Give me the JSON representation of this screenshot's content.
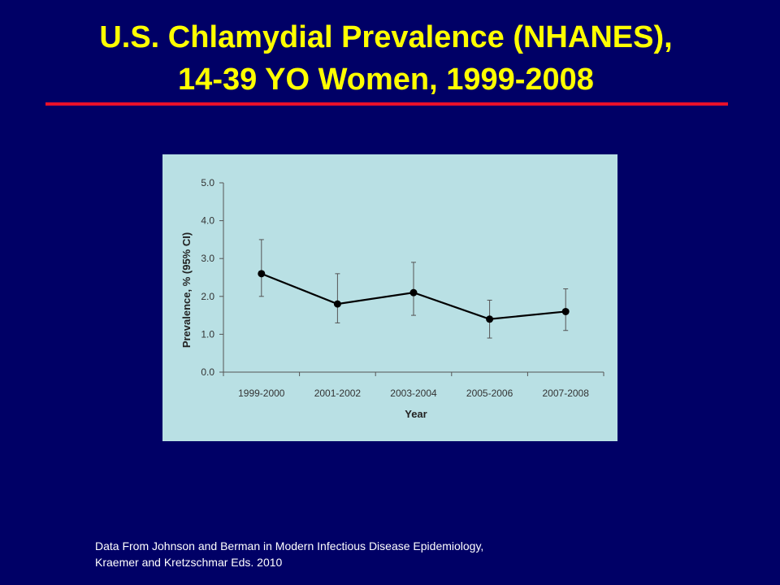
{
  "slide": {
    "title_line1": "U.S. Chlamydial Prevalence (NHANES),",
    "title_line2": "14-39 YO Women, 1999-2008",
    "footnote_line1": "Data From Johnson and Berman in Modern Infectious Disease Epidemiology,",
    "footnote_line2": "Kraemer and Kretzschmar Eds. 2010"
  },
  "colors": {
    "background": "#000066",
    "title": "#ffff00",
    "rule": "#e8102a",
    "chart_background": "#b9e0e4",
    "series": "#000000"
  },
  "chart_data": {
    "type": "line",
    "title": "",
    "xlabel": "Year",
    "ylabel": "Prevalence, % (95% CI)",
    "categories": [
      "1999-2000",
      "2001-2002",
      "2003-2004",
      "2005-2006",
      "2007-2008"
    ],
    "series": [
      {
        "values": [
          2.6,
          1.8,
          2.1,
          1.4,
          1.6
        ],
        "ci_low": [
          2.0,
          1.3,
          1.5,
          0.9,
          1.1
        ],
        "ci_high": [
          3.5,
          2.6,
          2.9,
          1.9,
          2.2
        ]
      }
    ],
    "ylim": [
      0,
      5
    ],
    "yticks": [
      "0.0",
      "1.0",
      "2.0",
      "3.0",
      "4.0",
      "5.0"
    ],
    "grid": false,
    "legend": "none"
  }
}
